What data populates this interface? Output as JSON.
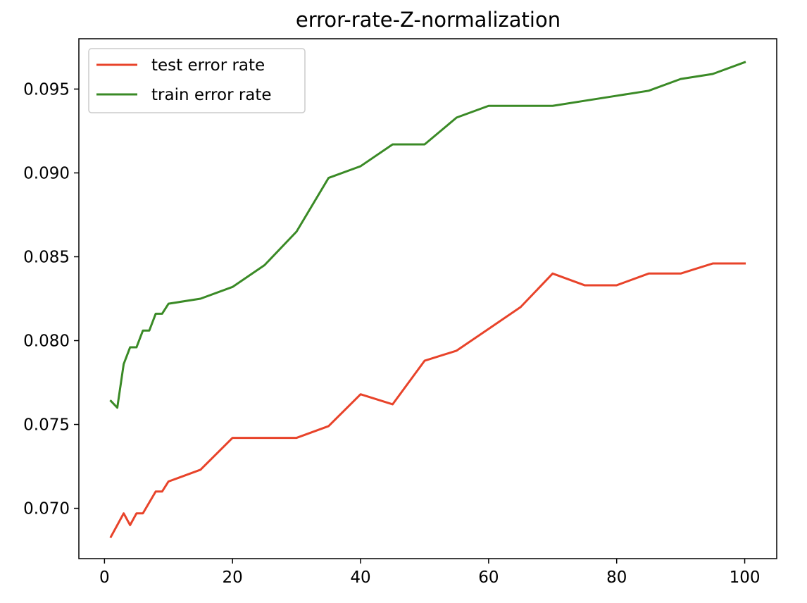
{
  "chart_data": {
    "type": "line",
    "title": "error-rate-Z-normalization",
    "xlabel": "",
    "ylabel": "",
    "xlim": [
      -4,
      105
    ],
    "ylim": [
      0.067,
      0.098
    ],
    "xticks": [
      0,
      20,
      40,
      60,
      80,
      100
    ],
    "yticks": [
      0.07,
      0.075,
      0.08,
      0.085,
      0.09,
      0.095
    ],
    "xtick_labels": [
      "0",
      "20",
      "40",
      "60",
      "80",
      "100"
    ],
    "ytick_labels": [
      "0.070",
      "0.075",
      "0.080",
      "0.085",
      "0.090",
      "0.095"
    ],
    "grid": false,
    "legend_position": "upper-left",
    "x": [
      1,
      2,
      3,
      4,
      5,
      6,
      7,
      8,
      9,
      10,
      15,
      20,
      25,
      30,
      35,
      40,
      45,
      50,
      55,
      60,
      65,
      70,
      75,
      80,
      85,
      90,
      95,
      100
    ],
    "series": [
      {
        "name": "test error rate",
        "color": "#e8432a",
        "values": [
          0.0683,
          null,
          0.0697,
          0.069,
          0.0697,
          0.0697,
          null,
          0.071,
          0.071,
          0.0716,
          0.0723,
          0.0742,
          0.0742,
          0.0742,
          0.0749,
          0.0768,
          0.0762,
          0.0788,
          0.0794,
          0.0807,
          0.082,
          0.084,
          0.0833,
          0.0833,
          0.084,
          0.084,
          0.0846,
          0.0846
        ]
      },
      {
        "name": "train error rate",
        "color": "#3a8a26",
        "values": [
          0.0764,
          0.076,
          0.0786,
          0.0796,
          0.0796,
          0.0806,
          0.0806,
          0.0816,
          0.0816,
          0.0822,
          0.0825,
          0.0832,
          0.0845,
          0.0865,
          0.0897,
          0.0904,
          0.0917,
          0.0917,
          0.0933,
          0.094,
          0.094,
          0.094,
          0.0943,
          0.0946,
          0.0949,
          0.0956,
          0.0959,
          0.0966
        ]
      }
    ]
  }
}
